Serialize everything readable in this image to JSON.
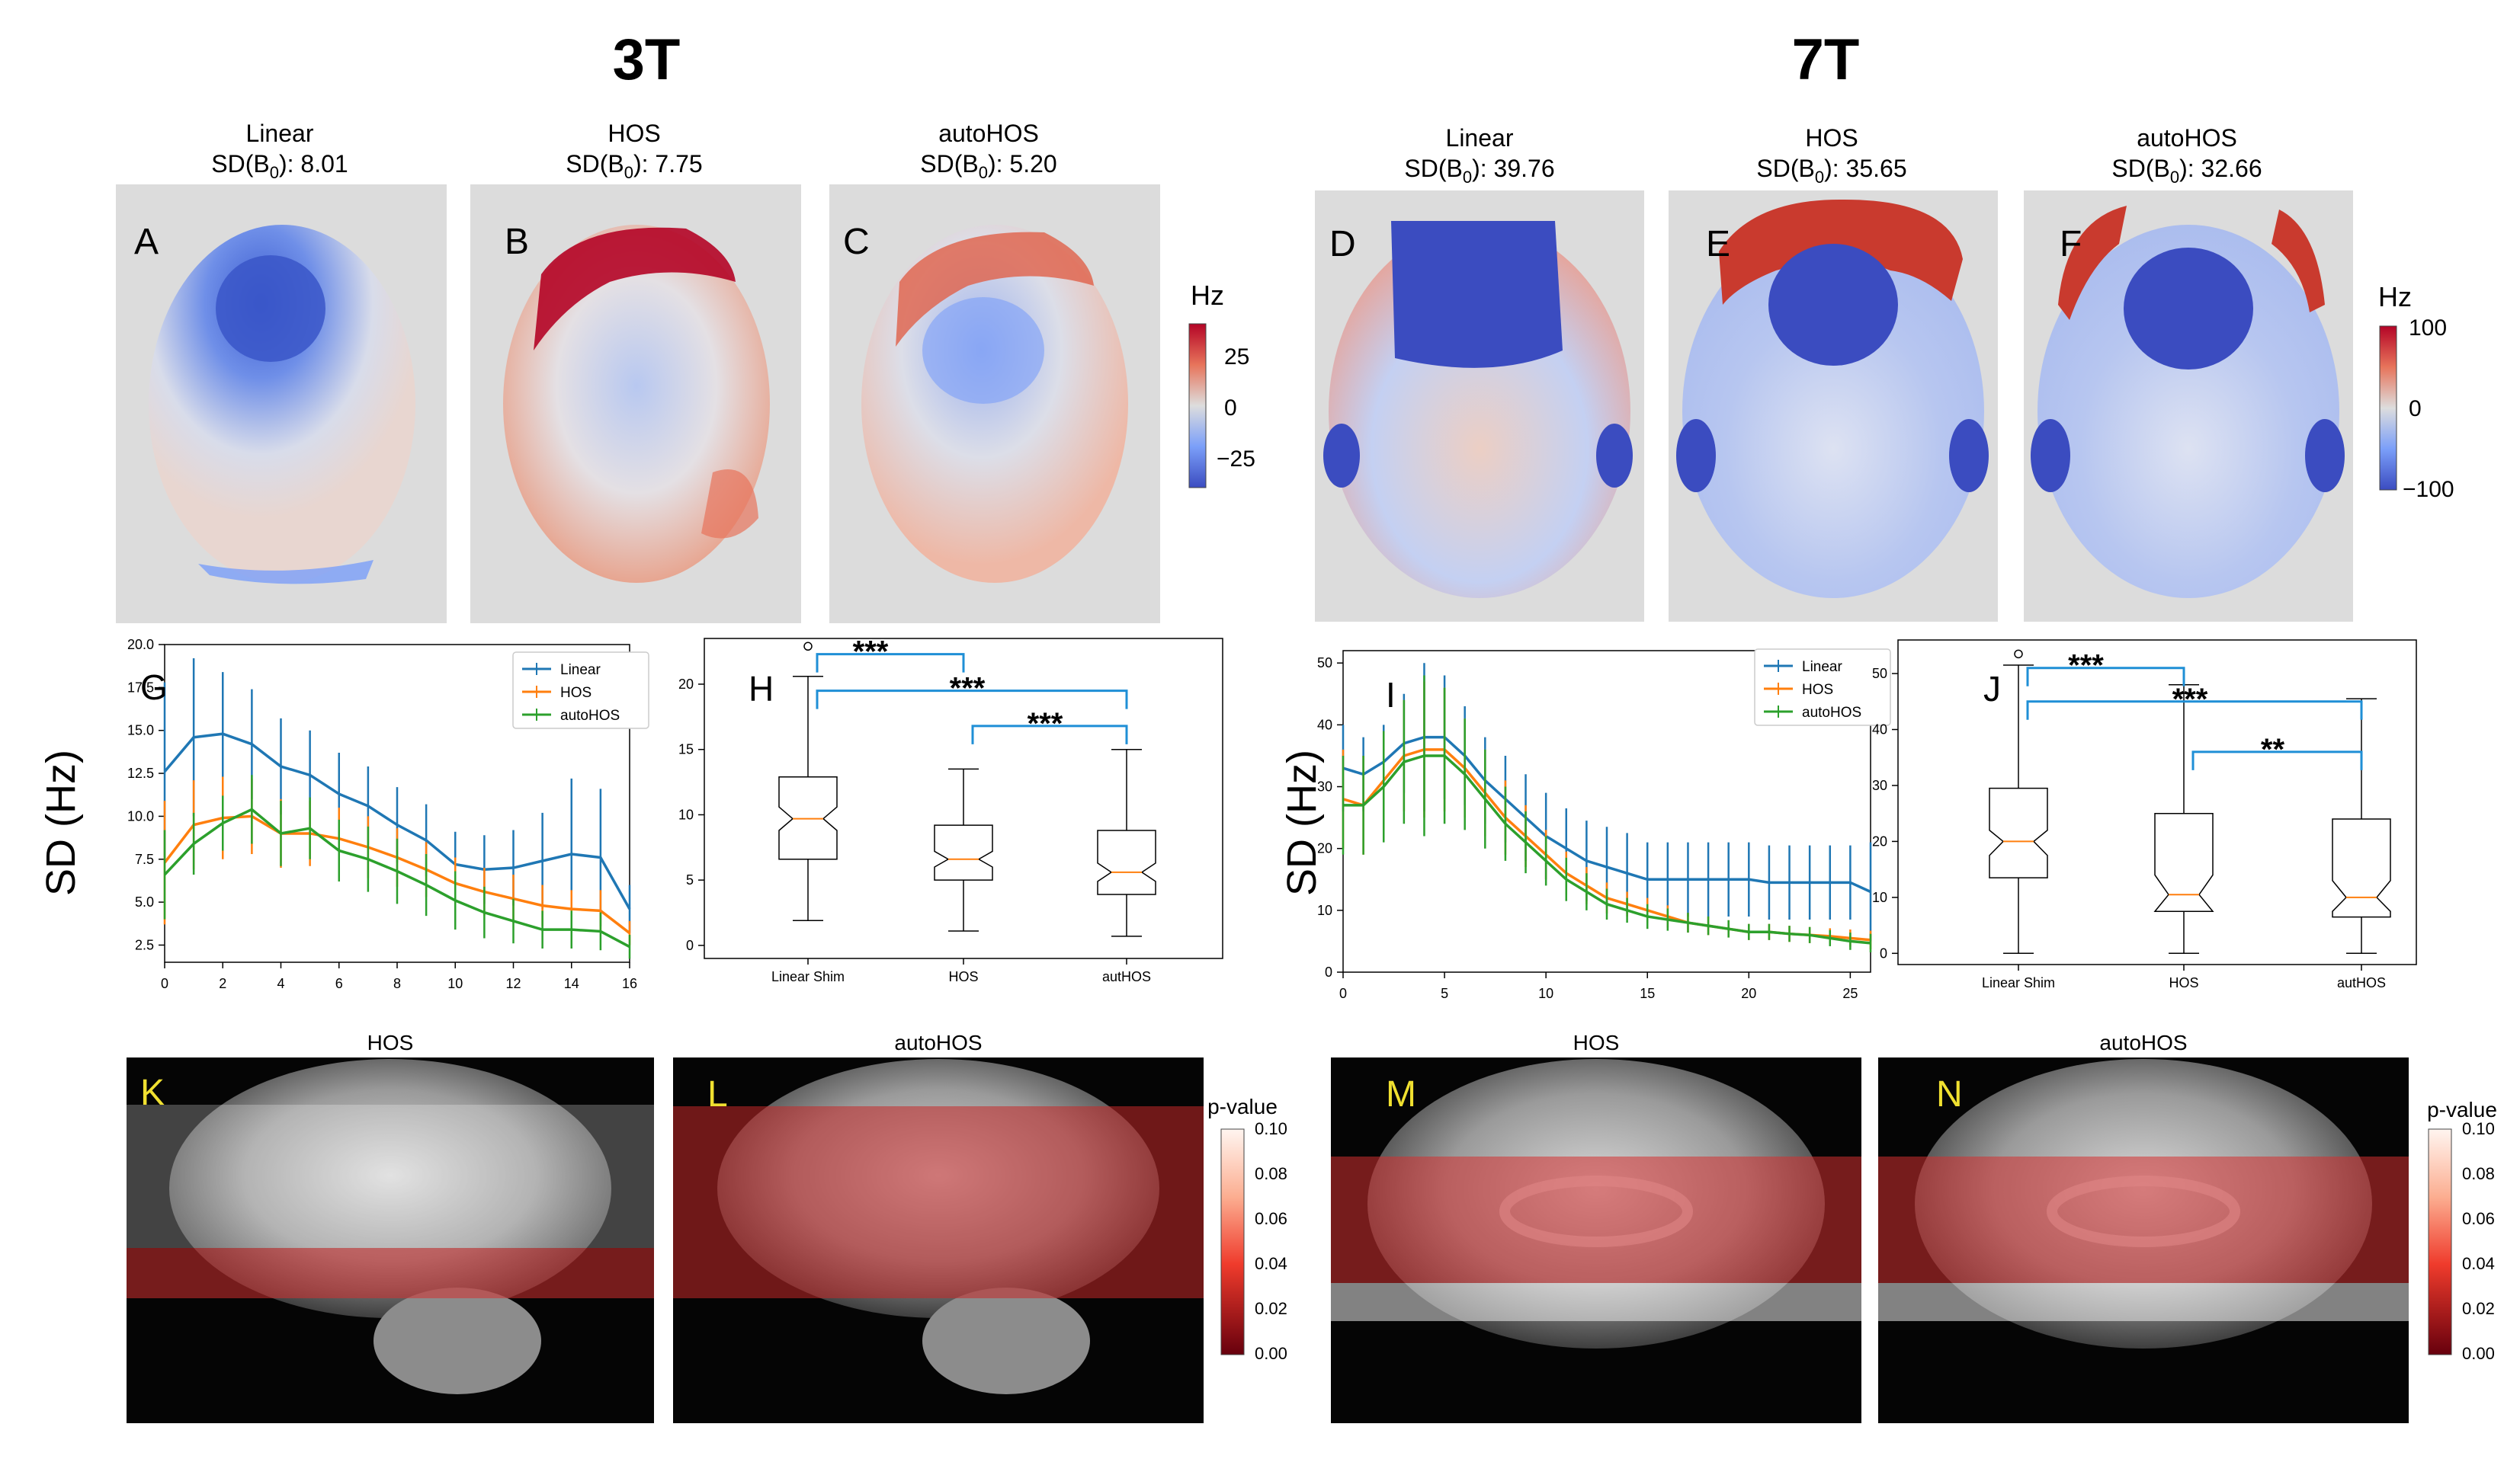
{
  "headers": {
    "left": "3T",
    "right": "7T"
  },
  "maps_3t": {
    "panels": [
      {
        "letter": "A",
        "name": "Linear",
        "sd_prefix": "SD(B",
        "sd_sub": "0",
        "sd_value": "): 8.01"
      },
      {
        "letter": "B",
        "name": "HOS",
        "sd_prefix": "SD(B",
        "sd_sub": "0",
        "sd_value": "): 7.75"
      },
      {
        "letter": "C",
        "name": "autoHOS",
        "sd_prefix": "SD(B",
        "sd_sub": "0",
        "sd_value": "): 5.20"
      }
    ],
    "colorbar": {
      "title": "Hz",
      "ticks": [
        "25",
        "0",
        "−25"
      ]
    }
  },
  "maps_7t": {
    "panels": [
      {
        "letter": "D",
        "name": "Linear",
        "sd_prefix": "SD(B",
        "sd_sub": "0",
        "sd_value": "): 39.76"
      },
      {
        "letter": "E",
        "name": "HOS",
        "sd_prefix": "SD(B",
        "sd_sub": "0",
        "sd_value": "): 35.65"
      },
      {
        "letter": "F",
        "name": "autoHOS",
        "sd_prefix": "SD(B",
        "sd_sub": "0",
        "sd_value": "): 32.66"
      }
    ],
    "colorbar": {
      "title": "Hz",
      "ticks": [
        "100",
        "0",
        "−100"
      ]
    }
  },
  "ylabel_sd": "SD (Hz)",
  "colors": {
    "linear": "#1f77b4",
    "hos": "#ff7f0e",
    "autohos": "#2ca02c",
    "bracket": "#1f8fd6"
  },
  "chart_data": [
    {
      "type": "line",
      "panel": "G",
      "ylabel": "SD (Hz)",
      "x": [
        0,
        1,
        2,
        3,
        4,
        5,
        6,
        7,
        8,
        9,
        10,
        11,
        12,
        13,
        14,
        15,
        16
      ],
      "xticks": [
        "0",
        "2",
        "4",
        "6",
        "8",
        "10",
        "12",
        "14",
        "16"
      ],
      "yticks": [
        "2.5",
        "5.0",
        "7.5",
        "10.0",
        "12.5",
        "15.0",
        "17.5",
        "20.0"
      ],
      "xlim": [
        0,
        16
      ],
      "ylim": [
        1.5,
        20
      ],
      "legend": "top-right",
      "series": [
        {
          "name": "Linear",
          "values": [
            12.6,
            14.6,
            14.8,
            14.2,
            12.9,
            12.4,
            11.3,
            10.6,
            9.5,
            8.6,
            7.2,
            6.9,
            7.0,
            7.4,
            7.8,
            7.6,
            4.6
          ],
          "err": [
            5.2,
            4.6,
            3.6,
            3.2,
            2.8,
            2.6,
            2.4,
            2.3,
            2.2,
            2.1,
            1.9,
            2.0,
            2.2,
            2.8,
            4.4,
            4.0,
            1.4
          ]
        },
        {
          "name": "HOS",
          "values": [
            7.3,
            9.5,
            9.9,
            10.0,
            9.0,
            9.0,
            8.7,
            8.2,
            7.6,
            6.9,
            6.1,
            5.6,
            5.2,
            4.8,
            4.6,
            4.5,
            3.2
          ],
          "err": [
            3.6,
            2.6,
            2.4,
            2.2,
            2.0,
            1.9,
            1.8,
            1.8,
            1.7,
            1.6,
            1.5,
            1.4,
            1.4,
            1.2,
            1.1,
            1.2,
            0.7
          ]
        },
        {
          "name": "autoHOS",
          "values": [
            6.6,
            8.4,
            9.6,
            10.4,
            9.0,
            9.3,
            8.0,
            7.5,
            6.8,
            6.0,
            5.1,
            4.4,
            3.9,
            3.4,
            3.4,
            3.3,
            2.4
          ],
          "err": [
            2.6,
            1.8,
            1.6,
            2.0,
            1.9,
            1.8,
            1.8,
            1.9,
            1.9,
            1.8,
            1.7,
            1.5,
            1.3,
            1.1,
            1.1,
            1.1,
            0.7
          ]
        }
      ]
    },
    {
      "type": "boxplot",
      "panel": "H",
      "categories": [
        "Linear Shim",
        "HOS",
        "autHOS"
      ],
      "yticks": [
        "0",
        "5",
        "10",
        "15",
        "20"
      ],
      "ylim": [
        -1,
        23.5
      ],
      "boxes": [
        {
          "min": 1.9,
          "q1": 6.6,
          "median": 9.7,
          "q3": 12.9,
          "max": 20.6,
          "notch_lo": 8.8,
          "notch_hi": 10.6,
          "outliers": [
            22.9
          ]
        },
        {
          "min": 1.1,
          "q1": 5.0,
          "median": 6.6,
          "q3": 9.2,
          "max": 13.5,
          "notch_lo": 6.0,
          "notch_hi": 7.2,
          "outliers": []
        },
        {
          "min": 0.7,
          "q1": 3.9,
          "median": 5.6,
          "q3": 8.8,
          "max": 15.0,
          "notch_lo": 4.9,
          "notch_hi": 6.3,
          "outliers": []
        }
      ],
      "brackets": [
        {
          "from": 0,
          "to": 1,
          "label": "***",
          "y": 22.3
        },
        {
          "from": 0,
          "to": 2,
          "label": "***",
          "y": 19.5
        },
        {
          "from": 1,
          "to": 2,
          "label": "***",
          "y": 16.8
        }
      ]
    },
    {
      "type": "line",
      "panel": "I",
      "ylabel": "SD (Hz)",
      "x": [
        0,
        1,
        2,
        3,
        4,
        5,
        6,
        7,
        8,
        9,
        10,
        11,
        12,
        13,
        14,
        15,
        16,
        17,
        18,
        19,
        20,
        21,
        22,
        23,
        24,
        25,
        26
      ],
      "xticks": [
        "0",
        "5",
        "10",
        "15",
        "20",
        "25"
      ],
      "yticks": [
        "0",
        "10",
        "20",
        "30",
        "40",
        "50"
      ],
      "xlim": [
        0,
        26
      ],
      "ylim": [
        0,
        52
      ],
      "legend": "top-right",
      "series": [
        {
          "name": "Linear",
          "values": [
            33,
            32,
            34,
            37,
            38,
            38,
            35,
            31,
            28,
            25,
            22,
            20,
            18,
            17,
            16,
            15,
            15,
            15,
            15,
            15,
            15,
            14.5,
            14.5,
            14.5,
            14.5,
            14.5,
            13
          ],
          "err": [
            7,
            6,
            6,
            8,
            12,
            10,
            8,
            7,
            7,
            7,
            7,
            6.5,
            6.5,
            6.5,
            6.5,
            6,
            6,
            6,
            6,
            6,
            6,
            6,
            6,
            6,
            6,
            6,
            8
          ]
        },
        {
          "name": "HOS",
          "values": [
            28,
            27,
            31,
            35,
            36,
            36,
            33,
            29,
            25,
            22,
            19,
            16,
            14,
            12,
            11,
            10,
            9,
            8,
            7.5,
            7,
            6.5,
            6.5,
            6.2,
            6,
            5.8,
            5.5,
            5.2
          ],
          "err": [
            8,
            8,
            8,
            9,
            11,
            10,
            8,
            7,
            6,
            5,
            4,
            3.5,
            3,
            2.5,
            2,
            2,
            1.8,
            1.6,
            1.5,
            1.4,
            1.3,
            1.3,
            1.3,
            1.3,
            1.3,
            1.4,
            1.5
          ]
        },
        {
          "name": "autoHOS",
          "values": [
            27,
            27,
            30,
            34,
            35,
            35,
            32,
            28,
            24,
            21,
            18,
            15,
            13,
            11,
            10,
            9,
            8.5,
            8,
            7.5,
            7,
            6.5,
            6.5,
            6.2,
            6,
            5.5,
            5,
            4.7
          ],
          "err": [
            8,
            8,
            9,
            10,
            13,
            11,
            9,
            8,
            6,
            5,
            4,
            3.5,
            3,
            2.5,
            2,
            2,
            1.8,
            1.6,
            1.5,
            1.4,
            1.3,
            1.3,
            1.3,
            1.3,
            1.3,
            1.4,
            1.5
          ]
        }
      ]
    },
    {
      "type": "boxplot",
      "panel": "J",
      "categories": [
        "Linear Shim",
        "HOS",
        "autHOS"
      ],
      "yticks": [
        "0",
        "10",
        "20",
        "30",
        "40",
        "50"
      ],
      "ylim": [
        -2,
        56
      ],
      "boxes": [
        {
          "min": 0,
          "q1": 13.5,
          "median": 20,
          "q3": 29.5,
          "max": 51.5,
          "notch_lo": 17.5,
          "notch_hi": 22,
          "outliers": [
            53.5
          ]
        },
        {
          "min": 0,
          "q1": 7.5,
          "median": 10.5,
          "q3": 25,
          "max": 48,
          "notch_lo": 7.5,
          "notch_hi": 14,
          "outliers": []
        },
        {
          "min": 0,
          "q1": 6.5,
          "median": 10,
          "q3": 24,
          "max": 45.5,
          "notch_lo": 7.5,
          "notch_hi": 13,
          "outliers": []
        }
      ],
      "brackets": [
        {
          "from": 0,
          "to": 1,
          "label": "***",
          "y": 51
        },
        {
          "from": 0,
          "to": 2,
          "label": "***",
          "y": 45
        },
        {
          "from": 1,
          "to": 2,
          "label": "**",
          "y": 36
        }
      ]
    }
  ],
  "sagittal": {
    "panels": [
      {
        "letter": "K",
        "title": "HOS"
      },
      {
        "letter": "L",
        "title": "autoHOS"
      },
      {
        "letter": "M",
        "title": "HOS"
      },
      {
        "letter": "N",
        "title": "autoHOS"
      }
    ],
    "colorbar": {
      "title": "p-value",
      "ticks": [
        "0.10",
        "0.08",
        "0.06",
        "0.04",
        "0.02",
        "0.00"
      ]
    }
  }
}
